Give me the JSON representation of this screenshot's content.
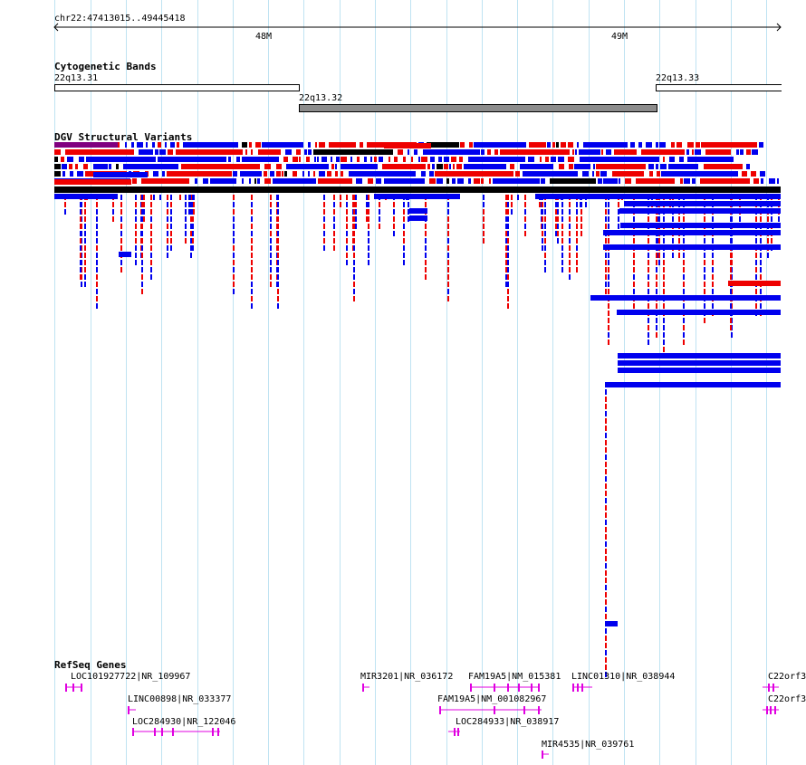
{
  "locus": "chr22:47413015..49445418",
  "ruler": {
    "ticks": [
      "48M",
      "49M"
    ]
  },
  "tracks": {
    "cytobands": {
      "title": "Cytogenetic Bands",
      "bands": [
        {
          "name": "22q13.31",
          "stain": "gneg"
        },
        {
          "name": "22q13.32",
          "stain": "gpos"
        },
        {
          "name": "22q13.33",
          "stain": "gneg"
        }
      ]
    },
    "dgv": {
      "title": "DGV Structural Variants",
      "colors": {
        "gain": "#0000ee",
        "loss": "#ee0000",
        "complex": "#000000",
        "inversion": "#800080"
      }
    },
    "refseq": {
      "title": "RefSeq Genes",
      "color": "#e000e0",
      "genes": [
        {
          "label": "LOC101927722|NR_109967"
        },
        {
          "label": "MIR3201|NR_036172"
        },
        {
          "label": "FAM19A5|NM_015381"
        },
        {
          "label": "LINC01310|NR_038944"
        },
        {
          "label": "C22orf3"
        },
        {
          "label": "LINC00898|NR_033377"
        },
        {
          "label": "FAM19A5|NM_001082967"
        },
        {
          "label": "C22orf3"
        },
        {
          "label": "LOC284930|NR_122046"
        },
        {
          "label": "LOC284933|NR_038917"
        },
        {
          "label": "MIR4535|NR_039761"
        }
      ]
    }
  }
}
